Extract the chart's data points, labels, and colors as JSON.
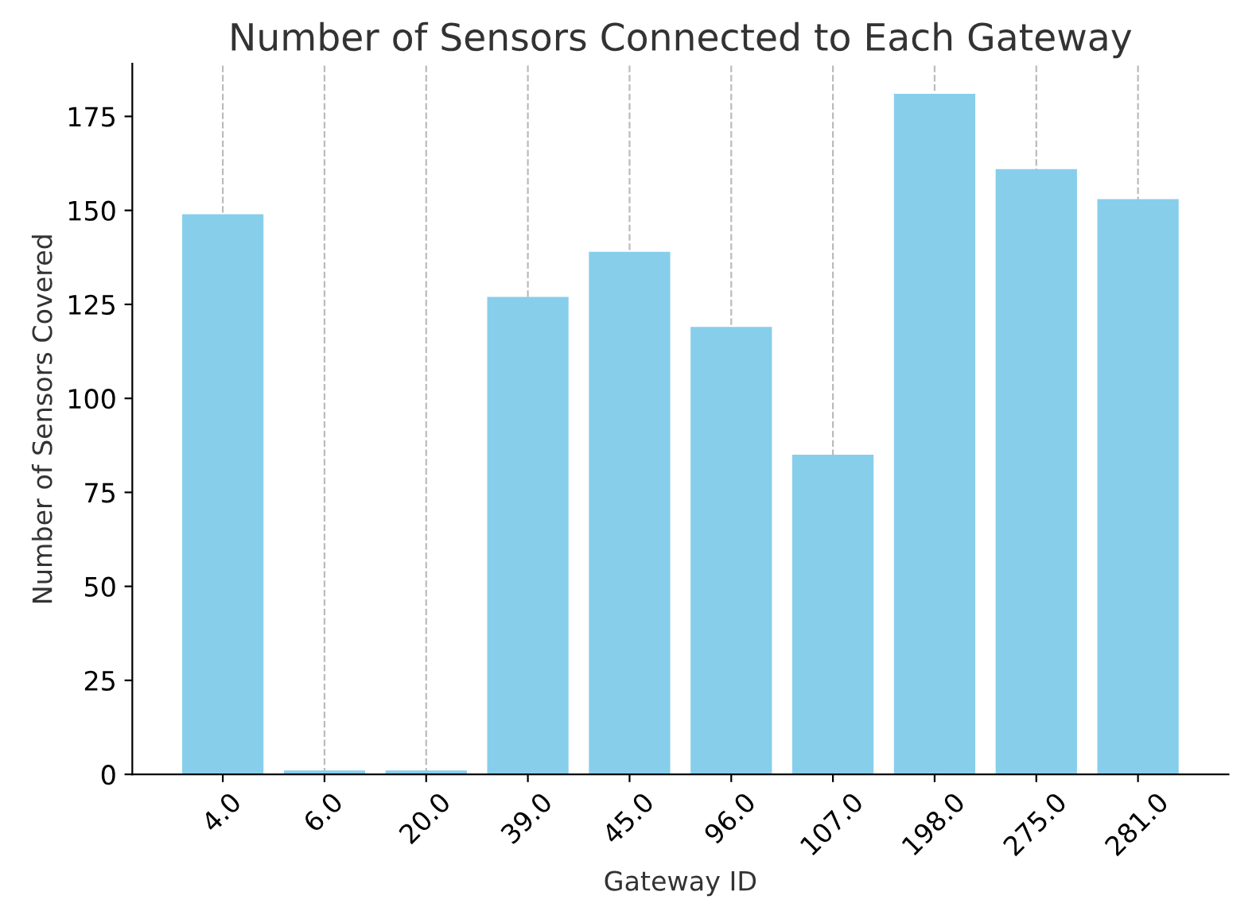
{
  "chart_data": {
    "type": "bar",
    "title": "Number of Sensors Connected to Each Gateway",
    "xlabel": "Gateway ID",
    "ylabel": "Number of Sensors Covered",
    "categories": [
      "4.0",
      "6.0",
      "20.0",
      "39.0",
      "45.0",
      "96.0",
      "107.0",
      "198.0",
      "275.0",
      "281.0"
    ],
    "values": [
      149,
      1,
      1,
      127,
      139,
      119,
      85,
      181,
      161,
      153
    ],
    "color": "#87ceeb",
    "ylim": [
      0,
      189
    ],
    "yticks": [
      0,
      25,
      50,
      75,
      100,
      125,
      150,
      175
    ],
    "grid": "x"
  }
}
